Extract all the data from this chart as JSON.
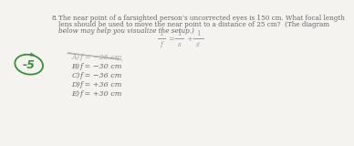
{
  "question_number": "8.",
  "question_text_line1": "The near point of a farsighted person’s uncorrected eyes is 150 cm. What focal length",
  "question_text_line2": "lens should be used to move the near point to a distance of 25 cm?  (The diagram",
  "question_text_line3": "below may help you visualize the setup.)",
  "question_text_line3_italic": true,
  "answers": [
    {
      "label": "A)",
      "text": "f = −25 cm",
      "correct": true
    },
    {
      "label": "B)",
      "text": "f = −30 cm",
      "correct": false
    },
    {
      "label": "C)",
      "text": "f = −36 cm",
      "correct": false
    },
    {
      "label": "D)",
      "text": "f = +36 cm",
      "correct": false
    },
    {
      "label": "E)",
      "text": "f = +30 cm",
      "correct": false
    }
  ],
  "circle_label": "-5",
  "bg_color": "#f5f3ef",
  "text_color": "#666666",
  "circle_color": "#3d8c3d",
  "strike_color": "#aaaaaa",
  "font_size_question": 5.2,
  "font_size_answer": 5.8,
  "font_size_formula": 5.5,
  "font_size_circle": 9
}
